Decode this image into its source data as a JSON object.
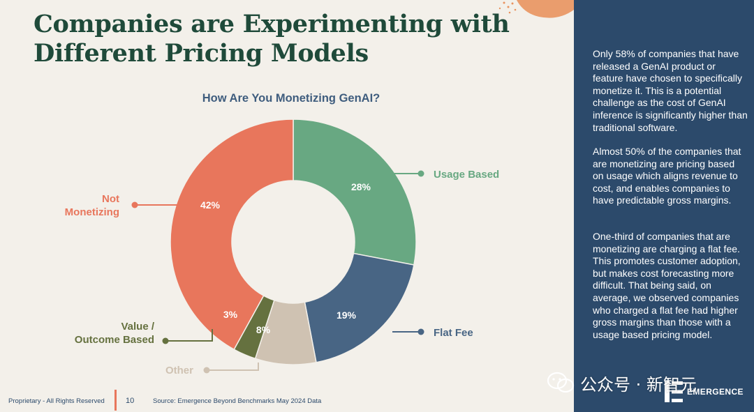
{
  "title": {
    "line1": "Companies are Experimenting with",
    "line2": "Different Pricing Models"
  },
  "chart_data": {
    "type": "donut",
    "title": "How Are You Monetizing GenAI?",
    "slices": [
      {
        "label": "Usage Based",
        "value": 28,
        "value_label": "28%",
        "color": "#68a882"
      },
      {
        "label": "Flat Fee",
        "value": 19,
        "value_label": "19%",
        "color": "#486584"
      },
      {
        "label": "Other",
        "value": 8,
        "value_label": "8%",
        "color": "#cfc2b2"
      },
      {
        "label": "Value / Outcome Based",
        "value": 3,
        "value_label": "3%",
        "color": "#65713f"
      },
      {
        "label": "Not Monetizing",
        "value": 42,
        "value_label": "42%",
        "color": "#e8765c"
      }
    ]
  },
  "sidebar": {
    "paragraphs": [
      "Only 58% of companies that have released a GenAI product or feature have chosen to specifically monetize it. This is a potential challenge as the cost of GenAI inference is significantly higher than traditional software.",
      "Almost 50% of the companies that are monetizing are pricing based on usage which aligns revenue to cost, and enables companies to have predictable gross margins.",
      "One-third of companies that are monetizing are charging a flat fee. This promotes customer adoption, but makes cost forecasting more difficult. That being said, on average, we observed companies who charged a flat fee had higher gross margins than those with a usage based pricing model."
    ],
    "brand": "EMERGENCE"
  },
  "watermark": "公众号 · 新智元",
  "footer": {
    "left": "Proprietary - All Rights Reserved",
    "page": "10",
    "source": "Source: Emergence Beyond Benchmarks May 2024 Data"
  }
}
